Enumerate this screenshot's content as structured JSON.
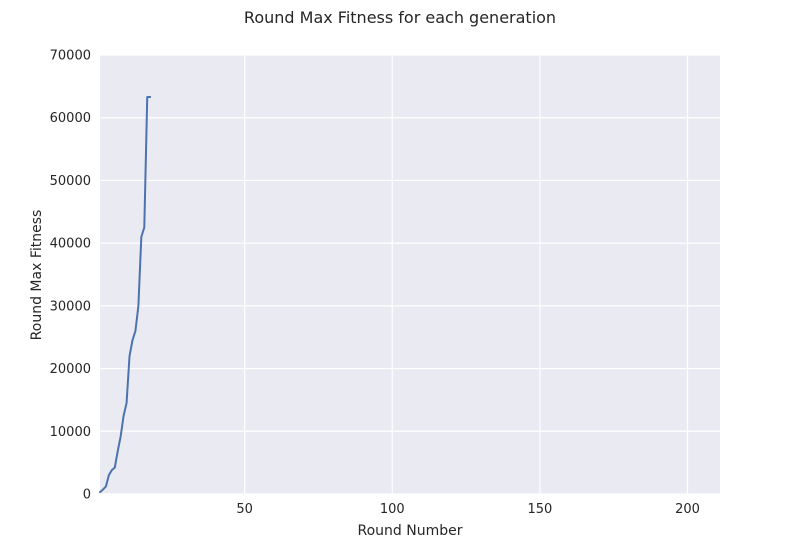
{
  "chart_data": {
    "type": "line",
    "title": "Round Max Fitness for each generation",
    "xlabel": "Round Number",
    "ylabel": "Round Max Fitness",
    "xlim": [
      1,
      211
    ],
    "ylim": [
      0,
      70000
    ],
    "xticks": [
      50,
      100,
      150,
      200
    ],
    "yticks": [
      0,
      10000,
      20000,
      30000,
      40000,
      50000,
      60000,
      70000
    ],
    "grid": true,
    "colors": {
      "background": "#EAEAF2",
      "grid": "#FFFFFF",
      "line": "#4C72B0",
      "text": "#262626"
    },
    "series": [
      {
        "x": [
          1,
          2,
          3,
          4,
          5,
          6,
          7,
          8,
          9,
          10,
          11,
          12,
          13,
          14,
          15,
          16,
          17,
          18
        ],
        "y": [
          300,
          700,
          1200,
          3000,
          3800,
          4200,
          6800,
          9200,
          12500,
          14500,
          22000,
          24500,
          26000,
          30000,
          41000,
          42500,
          63300,
          63300
        ]
      }
    ]
  }
}
